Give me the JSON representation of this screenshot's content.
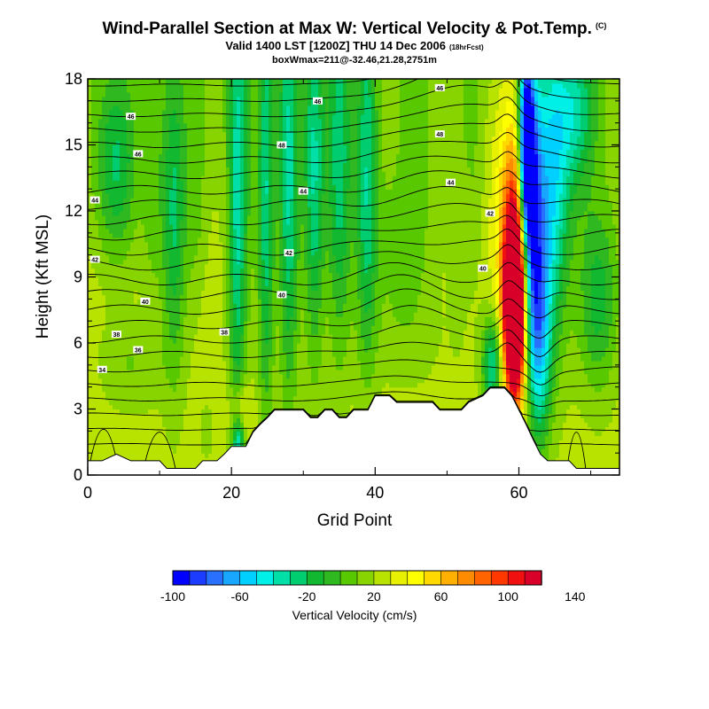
{
  "chart_data": {
    "type": "heatmap",
    "title": "Wind-Parallel Section at Max W: Vertical Velocity & Pot.Temp.",
    "title_tag": "(C)",
    "subtitle": "Valid 1400 LST [1200Z] THU 14 Dec 2006",
    "subtitle_tag": "(18hrFcst)",
    "info": "boxWmax=211@-32.46,21.28,2751m",
    "xlabel": "Grid Point",
    "ylabel": "Height (Kft MSL)",
    "xlim": [
      0,
      74
    ],
    "ylim": [
      0,
      18
    ],
    "x_ticks": [
      0,
      20,
      40,
      60
    ],
    "y_ticks": [
      0,
      3,
      6,
      9,
      12,
      15,
      18
    ],
    "colorbar": {
      "label": "Vertical Velocity (cm/s)",
      "tick_labels": [
        "-100",
        "-60",
        "-20",
        "20",
        "60",
        "100",
        "140"
      ],
      "tick_values": [
        -100,
        -60,
        -20,
        20,
        60,
        100,
        140
      ],
      "min": -100,
      "step": 10,
      "colors": [
        "#0000ff",
        "#1c3cff",
        "#2a70ff",
        "#18a6ff",
        "#00d0ff",
        "#00f0e8",
        "#00dfa8",
        "#00cc70",
        "#12b830",
        "#30b820",
        "#58c800",
        "#88d400",
        "#b8e200",
        "#e6f000",
        "#ffff00",
        "#ffd800",
        "#ffb000",
        "#ff8c00",
        "#ff6400",
        "#ff3800",
        "#f01010",
        "#d80028"
      ]
    },
    "terrain": [
      [
        0,
        0.65
      ],
      [
        2,
        0.65
      ],
      [
        4,
        0.95
      ],
      [
        6,
        0.65
      ],
      [
        10,
        0.65
      ],
      [
        11,
        0.3
      ],
      [
        15,
        0.3
      ],
      [
        16,
        0.65
      ],
      [
        18,
        0.65
      ],
      [
        19,
        0.95
      ],
      [
        20,
        1.3
      ],
      [
        22,
        1.3
      ],
      [
        23,
        1.95
      ],
      [
        24,
        2.3
      ],
      [
        25,
        2.6
      ],
      [
        26,
        2.95
      ],
      [
        30,
        2.95
      ],
      [
        31,
        2.6
      ],
      [
        32,
        2.6
      ],
      [
        33,
        2.95
      ],
      [
        34,
        2.95
      ],
      [
        35,
        2.6
      ],
      [
        36,
        2.6
      ],
      [
        37,
        2.95
      ],
      [
        39,
        2.95
      ],
      [
        40,
        3.6
      ],
      [
        42,
        3.6
      ],
      [
        43,
        3.3
      ],
      [
        48,
        3.3
      ],
      [
        49,
        2.95
      ],
      [
        52,
        2.95
      ],
      [
        53,
        3.3
      ],
      [
        55,
        3.6
      ],
      [
        56,
        3.95
      ],
      [
        58,
        3.95
      ],
      [
        59,
        3.6
      ],
      [
        60,
        2.95
      ],
      [
        61,
        2.3
      ],
      [
        62,
        1.6
      ],
      [
        63,
        0.95
      ],
      [
        64,
        0.65
      ],
      [
        67,
        0.65
      ],
      [
        68,
        0.3
      ],
      [
        74,
        0.3
      ]
    ],
    "velocity_features": [
      {
        "x": 59.4,
        "y": 7.6,
        "value": 155,
        "sx": 0.9,
        "sy": 2.4
      },
      {
        "x": 59.4,
        "y": 9.0,
        "value": 115,
        "sx": 1.2,
        "sy": 3.8
      },
      {
        "x": 59.2,
        "y": 10.5,
        "value": 45,
        "sx": 1.7,
        "sy": 6.5
      },
      {
        "x": 57.5,
        "y": 14.0,
        "value": 35,
        "sx": 1.8,
        "sy": 4.0
      },
      {
        "x": 61.0,
        "y": 15.0,
        "value": -95,
        "sx": 0.7,
        "sy": 3.0
      },
      {
        "x": 61.8,
        "y": 12.0,
        "value": -60,
        "sx": 1.0,
        "sy": 4.5
      },
      {
        "x": 64.5,
        "y": 13.0,
        "value": -42,
        "sx": 1.8,
        "sy": 5.0
      },
      {
        "x": 62.8,
        "y": 6.2,
        "value": -40,
        "sx": 1.2,
        "sy": 3.5
      },
      {
        "x": 56.3,
        "y": 5.0,
        "value": -35,
        "sx": 1.0,
        "sy": 1.6
      },
      {
        "x": 20.8,
        "y": 12.0,
        "value": -30,
        "sx": 0.9,
        "sy": 8.0
      },
      {
        "x": 22.5,
        "y": 13.0,
        "value": 15,
        "sx": 0.8,
        "sy": 6.0
      },
      {
        "x": 24.8,
        "y": 12.0,
        "value": -25,
        "sx": 0.8,
        "sy": 7.0
      },
      {
        "x": 28.0,
        "y": 13.0,
        "value": -28,
        "sx": 1.0,
        "sy": 7.0
      },
      {
        "x": 31.5,
        "y": 13.5,
        "value": -25,
        "sx": 1.0,
        "sy": 6.0
      },
      {
        "x": 35.0,
        "y": 14.0,
        "value": -20,
        "sx": 1.2,
        "sy": 6.0
      },
      {
        "x": 38.8,
        "y": 13.5,
        "value": -20,
        "sx": 1.0,
        "sy": 6.0
      },
      {
        "x": 21.2,
        "y": 2.8,
        "value": 55,
        "sx": 1.0,
        "sy": 1.0
      },
      {
        "x": 21.0,
        "y": 1.6,
        "value": -25,
        "sx": 0.6,
        "sy": 0.8
      },
      {
        "x": 44.0,
        "y": 6.5,
        "value": 16,
        "sx": 4.5,
        "sy": 2.0
      },
      {
        "x": 43.0,
        "y": 10.5,
        "value": 12,
        "sx": 4.0,
        "sy": 2.8
      },
      {
        "x": 49.5,
        "y": 13.5,
        "value": 28,
        "sx": 1.2,
        "sy": 5.0
      },
      {
        "x": 51.5,
        "y": 12.0,
        "value": 18,
        "sx": 1.0,
        "sy": 5.0
      },
      {
        "x": 53.8,
        "y": 14.0,
        "value": 16,
        "sx": 1.0,
        "sy": 4.5
      },
      {
        "x": 45.5,
        "y": 15.0,
        "value": 14,
        "sx": 1.5,
        "sy": 4.0
      },
      {
        "x": 12.0,
        "y": 11.5,
        "value": -18,
        "sx": 1.2,
        "sy": 5.0
      },
      {
        "x": 9.0,
        "y": 12.5,
        "value": 10,
        "sx": 1.0,
        "sy": 4.0
      },
      {
        "x": 15.0,
        "y": 13.0,
        "value": 10,
        "sx": 1.0,
        "sy": 4.0
      },
      {
        "x": 4.0,
        "y": 14.0,
        "value": -15,
        "sx": 2.0,
        "sy": 3.0
      },
      {
        "x": 68.0,
        "y": 16.5,
        "value": -20,
        "sx": 2.0,
        "sy": 2.5
      },
      {
        "x": 71.0,
        "y": 8.0,
        "value": -15,
        "sx": 2.0,
        "sy": 3.0
      },
      {
        "x": 16.5,
        "y": 2.0,
        "value": 14,
        "sx": 0.6,
        "sy": 1.0
      },
      {
        "x": 6.0,
        "y": 5.0,
        "value": 10,
        "sx": 3.0,
        "sy": 1.5
      }
    ],
    "theta_contour_labels": [
      {
        "text": "46",
        "x": 6.0,
        "y": 16.3
      },
      {
        "text": "46",
        "x": 32.0,
        "y": 17.0
      },
      {
        "text": "46",
        "x": 49.0,
        "y": 17.6
      },
      {
        "text": "46",
        "x": 7.0,
        "y": 14.6
      },
      {
        "text": "48",
        "x": 27.0,
        "y": 15.0
      },
      {
        "text": "48",
        "x": 49.0,
        "y": 15.5
      },
      {
        "text": "44",
        "x": 1.0,
        "y": 12.5
      },
      {
        "text": "44",
        "x": 30.0,
        "y": 12.9
      },
      {
        "text": "44",
        "x": 50.5,
        "y": 13.3
      },
      {
        "text": "42",
        "x": 56.0,
        "y": 11.9
      },
      {
        "text": "42",
        "x": 1.0,
        "y": 9.8
      },
      {
        "text": "42",
        "x": 28.0,
        "y": 10.1
      },
      {
        "text": "40",
        "x": 55.0,
        "y": 9.4
      },
      {
        "text": "40",
        "x": 27.0,
        "y": 8.2
      },
      {
        "text": "40",
        "x": 8.0,
        "y": 7.9
      },
      {
        "text": "38",
        "x": 4.0,
        "y": 6.4
      },
      {
        "text": "38",
        "x": 19.0,
        "y": 6.5
      },
      {
        "text": "36",
        "x": 7.0,
        "y": 5.7
      },
      {
        "text": "34",
        "x": 2.0,
        "y": 4.8
      }
    ]
  }
}
